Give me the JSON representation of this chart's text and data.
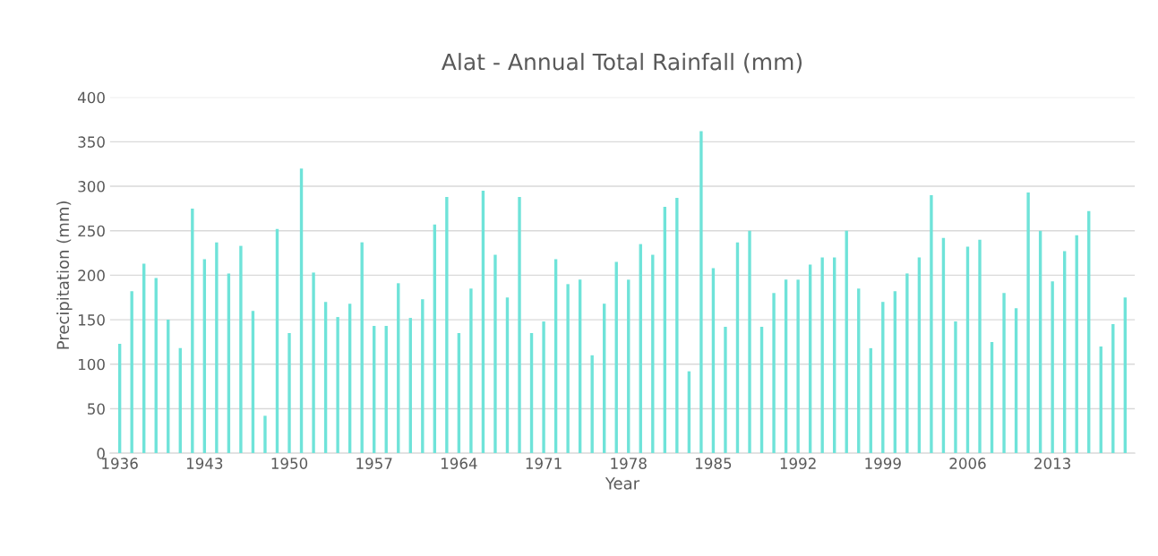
{
  "chart_data": {
    "type": "bar",
    "title": "Alat - Annual Total Rainfall (mm)",
    "xlabel": "Year",
    "ylabel": "Precipitation (mm)",
    "categories": [
      "1936",
      null,
      null,
      null,
      null,
      null,
      null,
      "1943",
      null,
      null,
      null,
      null,
      null,
      null,
      "1950",
      null,
      null,
      null,
      null,
      null,
      null,
      "1957",
      null,
      null,
      null,
      null,
      null,
      null,
      "1964",
      null,
      null,
      null,
      null,
      null,
      null,
      "1971",
      null,
      null,
      null,
      null,
      null,
      null,
      "1978",
      null,
      null,
      null,
      null,
      null,
      null,
      "1985",
      null,
      null,
      null,
      null,
      null,
      null,
      "1992",
      null,
      null,
      null,
      null,
      null,
      null,
      "1999",
      null,
      null,
      null,
      null,
      null,
      null,
      "2006",
      null,
      null,
      null,
      null,
      null,
      null,
      "2013",
      null,
      null,
      null,
      null,
      null,
      null
    ],
    "values": [
      123,
      182,
      213,
      197,
      150,
      118,
      275,
      218,
      237,
      202,
      233,
      160,
      42,
      252,
      135,
      320,
      203,
      170,
      153,
      168,
      237,
      143,
      143,
      191,
      152,
      173,
      257,
      288,
      135,
      185,
      295,
      223,
      175,
      288,
      135,
      148,
      218,
      190,
      195,
      110,
      168,
      215,
      195,
      235,
      223,
      277,
      287,
      92,
      362,
      208,
      142,
      237,
      250,
      142,
      180,
      195,
      195,
      212,
      220,
      220,
      250,
      185,
      118,
      170,
      182,
      202,
      220,
      290,
      242,
      148,
      232,
      240,
      125,
      180,
      163,
      293,
      250,
      193,
      227,
      245,
      272,
      120,
      145,
      175
    ],
    "color": "#6fe3d9",
    "ylim": [
      0,
      400
    ],
    "yticks": [
      0,
      50,
      100,
      150,
      200,
      250,
      300,
      350,
      400
    ],
    "grid": "y"
  }
}
